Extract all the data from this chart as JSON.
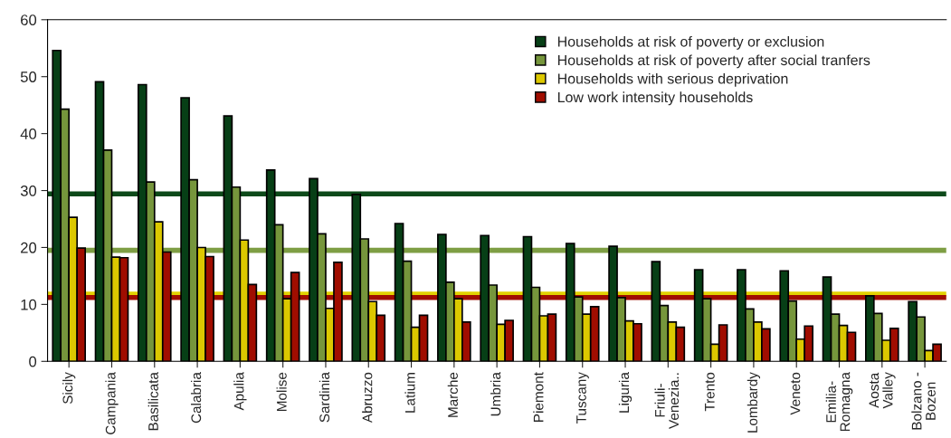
{
  "chart_data": {
    "type": "bar",
    "categories": [
      "Sicily",
      "Campania",
      "Basilicata",
      "Calabria",
      "Apulia",
      "Molise",
      "Sardinia",
      "Abruzzo",
      "Latium",
      "Marche",
      "Umbria",
      "Piemont",
      "Tuscany",
      "Liguria",
      "Friuli-\nVenezia..",
      "Trento",
      "Lombardy",
      "Veneto",
      "Emilia-\nRomagna",
      "Aosta\nValley",
      "Bolzano -\nBozen"
    ],
    "series": [
      {
        "name": "Households at risk of poverty or exclusion",
        "color": "#073f16",
        "values": [
          54.6,
          49.1,
          48.6,
          46.3,
          43.1,
          33.6,
          32.1,
          29.3,
          24.2,
          22.3,
          22.1,
          21.9,
          20.7,
          20.2,
          17.5,
          16.1,
          16.1,
          15.9,
          14.8,
          11.5,
          10.5
        ]
      },
      {
        "name": "Households at risk of poverty after social tranfers",
        "color": "#76963c",
        "values": [
          44.3,
          37.1,
          31.5,
          31.9,
          30.6,
          24.0,
          22.4,
          21.5,
          17.6,
          13.9,
          13.4,
          13.0,
          11.3,
          11.2,
          9.8,
          11.0,
          9.2,
          10.6,
          8.3,
          8.4,
          7.8
        ]
      },
      {
        "name": "Households with serious deprivation",
        "color": "#dcc800",
        "values": [
          25.3,
          18.3,
          24.5,
          20.0,
          21.3,
          11.0,
          9.3,
          10.5,
          6.0,
          11.0,
          6.5,
          8.0,
          8.3,
          7.1,
          6.9,
          3.0,
          6.9,
          3.9,
          6.3,
          3.7,
          1.9
        ]
      },
      {
        "name": "Low work intensity households",
        "color": "#a00d00",
        "values": [
          19.9,
          18.2,
          19.2,
          18.4,
          13.5,
          15.6,
          17.4,
          8.1,
          8.1,
          6.9,
          7.2,
          8.3,
          9.6,
          6.6,
          6.0,
          6.4,
          5.7,
          6.2,
          5.1,
          5.8,
          3.0
        ]
      }
    ],
    "ref_lines": [
      {
        "axis": "y",
        "value": 29.4,
        "color": "#0d4a1a"
      },
      {
        "axis": "y",
        "value": 19.5,
        "color": "#7e9e44"
      },
      {
        "axis": "y",
        "value": 11.8,
        "color": "#e2d200"
      },
      {
        "axis": "y",
        "value": 11.2,
        "color": "#a00d00"
      }
    ],
    "ylim": [
      0,
      60
    ],
    "yticks": [
      0,
      10,
      20,
      30,
      40,
      50,
      60
    ],
    "legend": "top right",
    "grid": false
  }
}
